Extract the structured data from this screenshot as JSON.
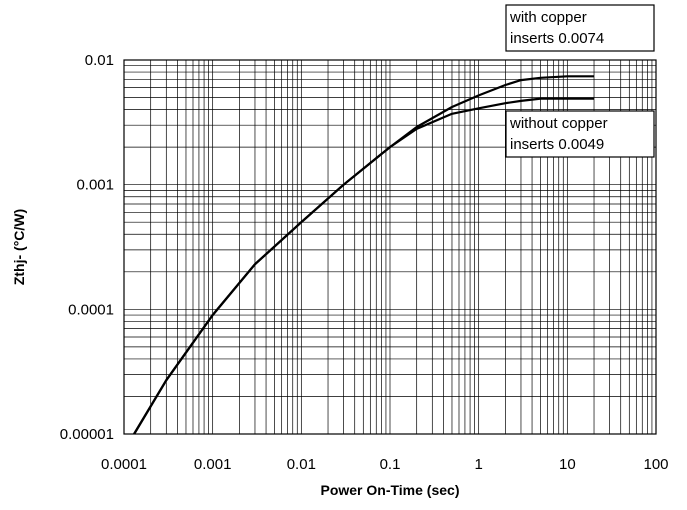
{
  "chart_data": {
    "type": "line",
    "title": "",
    "xlabel": "Power On-Time (sec)",
    "ylabel": "Zthj- (°C/W)",
    "x_scale": "log",
    "y_scale": "log",
    "xlim": [
      0.0001,
      100
    ],
    "ylim": [
      1e-05,
      0.01
    ],
    "grid": true,
    "x_ticks": [
      "0.0001",
      "0.001",
      "0.01",
      "0.1",
      "1",
      "10",
      "100"
    ],
    "y_ticks": [
      "0.00001",
      "0.0001",
      "0.001",
      "0.01"
    ],
    "line_color": "#000000",
    "series": [
      {
        "name": "with copper inserts 0.0074",
        "label_lines": [
          "with copper",
          "inserts 0.0074"
        ],
        "x": [
          0.00013,
          0.0003,
          0.001,
          0.003,
          0.01,
          0.03,
          0.1,
          0.2,
          0.5,
          1,
          2,
          3,
          5,
          10,
          20
        ],
        "y": [
          1e-05,
          2.7e-05,
          9e-05,
          0.00023,
          0.0005,
          0.001,
          0.002,
          0.0029,
          0.0042,
          0.0052,
          0.0063,
          0.0069,
          0.0072,
          0.0074,
          0.0074
        ]
      },
      {
        "name": "without copper inserts 0.0049",
        "label_lines": [
          "without copper",
          "inserts 0.0049"
        ],
        "x": [
          0.00013,
          0.0003,
          0.001,
          0.003,
          0.01,
          0.03,
          0.1,
          0.2,
          0.5,
          1,
          2,
          3,
          5,
          10,
          20
        ],
        "y": [
          1e-05,
          2.7e-05,
          9e-05,
          0.00023,
          0.0005,
          0.001,
          0.002,
          0.0028,
          0.0037,
          0.0041,
          0.0045,
          0.0047,
          0.0049,
          0.0049,
          0.0049
        ]
      }
    ]
  }
}
